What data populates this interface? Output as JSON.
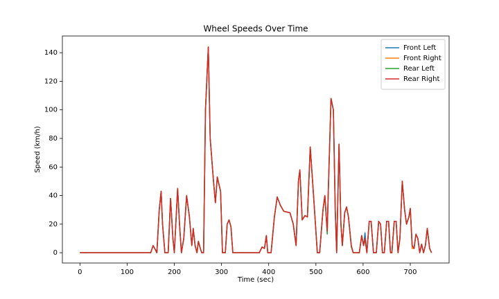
{
  "chart_data": {
    "type": "line",
    "title": "Wheel Speeds Over Time",
    "x_label": "Time (sec)",
    "y_label": "Speed (km/h)",
    "x": [
      0,
      150,
      155,
      160,
      163,
      168,
      172,
      175,
      180,
      187,
      192,
      197,
      200,
      207,
      211,
      215,
      220,
      226,
      232,
      237,
      240,
      244,
      248,
      251,
      255,
      258,
      262,
      266,
      272,
      276,
      283,
      287,
      291,
      298,
      302,
      308,
      312,
      316,
      320,
      324,
      380,
      386,
      391,
      395,
      398,
      405,
      412,
      418,
      425,
      432,
      445,
      452,
      456,
      458,
      463,
      466,
      471,
      477,
      482,
      488,
      495,
      503,
      508,
      515,
      519,
      524,
      526,
      532,
      537,
      541,
      544,
      549,
      553,
      556,
      561,
      565,
      569,
      575,
      579,
      592,
      597,
      601,
      604,
      608,
      613,
      617,
      622,
      628,
      633,
      637,
      641,
      645,
      650,
      654,
      658,
      661,
      666,
      670,
      674,
      678,
      683,
      688,
      692,
      697,
      700,
      704,
      708,
      712,
      716,
      720,
      724,
      728,
      732,
      736,
      741,
      745
    ],
    "series": [
      {
        "name": "Front Left",
        "color": "#1f77b4",
        "values": [
          0,
          0,
          5,
          2,
          0,
          30,
          43,
          20,
          0,
          0,
          38,
          10,
          0,
          45,
          20,
          0,
          10,
          40,
          25,
          5,
          17,
          5,
          0,
          8,
          3,
          0,
          0,
          100,
          144,
          80,
          50,
          35,
          53,
          43,
          0,
          0,
          20,
          23,
          18,
          0,
          0,
          4,
          3,
          12,
          0,
          0,
          25,
          39,
          33,
          29,
          28,
          20,
          10,
          5,
          50,
          58,
          23,
          26,
          25,
          74,
          40,
          0,
          0,
          30,
          40,
          15,
          40,
          108,
          100,
          30,
          0,
          76,
          20,
          5,
          28,
          32,
          25,
          5,
          0,
          0,
          12,
          5,
          14,
          0,
          22,
          22,
          0,
          0,
          22,
          20,
          0,
          0,
          22,
          22,
          0,
          0,
          22,
          22,
          0,
          10,
          50,
          30,
          20,
          25,
          31,
          5,
          3,
          13,
          10,
          0,
          6,
          0,
          5,
          17,
          3,
          0
        ]
      },
      {
        "name": "Front Right",
        "color": "#ff7f0e",
        "values": [
          0,
          0,
          5,
          2,
          0,
          30,
          43,
          20,
          0,
          0,
          38,
          10,
          0,
          45,
          20,
          0,
          10,
          40,
          25,
          5,
          17,
          5,
          0,
          8,
          3,
          0,
          0,
          100,
          144,
          80,
          50,
          35,
          53,
          43,
          0,
          0,
          20,
          23,
          18,
          0,
          0,
          4,
          3,
          12,
          0,
          0,
          25,
          39,
          33,
          29,
          28,
          20,
          10,
          5,
          50,
          58,
          23,
          26,
          25,
          74,
          40,
          0,
          0,
          30,
          40,
          15,
          40,
          108,
          100,
          30,
          0,
          76,
          20,
          5,
          28,
          32,
          25,
          5,
          0,
          0,
          12,
          5,
          10,
          0,
          22,
          22,
          0,
          0,
          22,
          20,
          0,
          0,
          22,
          22,
          0,
          0,
          22,
          22,
          0,
          10,
          50,
          30,
          20,
          25,
          31,
          3,
          3,
          13,
          10,
          0,
          6,
          0,
          5,
          17,
          3,
          0
        ]
      },
      {
        "name": "Rear Left",
        "color": "#2ca02c",
        "values": [
          0,
          0,
          5,
          2,
          0,
          30,
          43,
          20,
          0,
          0,
          38,
          10,
          0,
          45,
          20,
          0,
          10,
          40,
          25,
          5,
          17,
          5,
          0,
          8,
          3,
          0,
          0,
          100,
          144,
          80,
          50,
          35,
          53,
          43,
          0,
          0,
          20,
          23,
          18,
          0,
          0,
          4,
          3,
          12,
          0,
          0,
          25,
          39,
          33,
          29,
          28,
          20,
          10,
          5,
          50,
          58,
          23,
          26,
          25,
          74,
          40,
          0,
          0,
          30,
          40,
          13,
          40,
          108,
          100,
          30,
          0,
          76,
          20,
          5,
          28,
          32,
          25,
          4,
          0,
          0,
          12,
          5,
          10,
          0,
          22,
          22,
          0,
          0,
          22,
          20,
          0,
          0,
          22,
          22,
          0,
          0,
          22,
          22,
          0,
          10,
          50,
          30,
          20,
          25,
          31,
          5,
          3,
          13,
          10,
          0,
          6,
          0,
          5,
          17,
          3,
          0
        ]
      },
      {
        "name": "Rear Right",
        "color": "#d62728",
        "values": [
          0,
          0,
          5,
          2,
          0,
          30,
          43,
          20,
          0,
          0,
          38,
          10,
          0,
          45,
          20,
          0,
          10,
          40,
          25,
          5,
          17,
          5,
          0,
          8,
          3,
          0,
          0,
          100,
          144,
          80,
          50,
          35,
          53,
          43,
          0,
          0,
          20,
          23,
          18,
          0,
          0,
          4,
          3,
          12,
          0,
          0,
          25,
          39,
          33,
          29,
          28,
          20,
          10,
          5,
          50,
          58,
          23,
          26,
          25,
          74,
          40,
          0,
          0,
          30,
          40,
          15,
          40,
          108,
          100,
          30,
          0,
          76,
          20,
          5,
          28,
          32,
          25,
          5,
          0,
          0,
          12,
          5,
          10,
          0,
          22,
          22,
          0,
          0,
          22,
          20,
          0,
          0,
          22,
          22,
          0,
          0,
          22,
          22,
          0,
          10,
          50,
          30,
          20,
          25,
          31,
          5,
          3,
          13,
          10,
          0,
          6,
          0,
          5,
          17,
          3,
          0
        ]
      }
    ],
    "xlim": [
      -37.25,
      782.25
    ],
    "ylim": [
      -7.2,
      151.7
    ],
    "xticks": [
      0,
      100,
      200,
      300,
      400,
      500,
      600,
      700
    ],
    "yticks": [
      0,
      20,
      40,
      60,
      80,
      100,
      120,
      140
    ],
    "legend": "upper right"
  }
}
